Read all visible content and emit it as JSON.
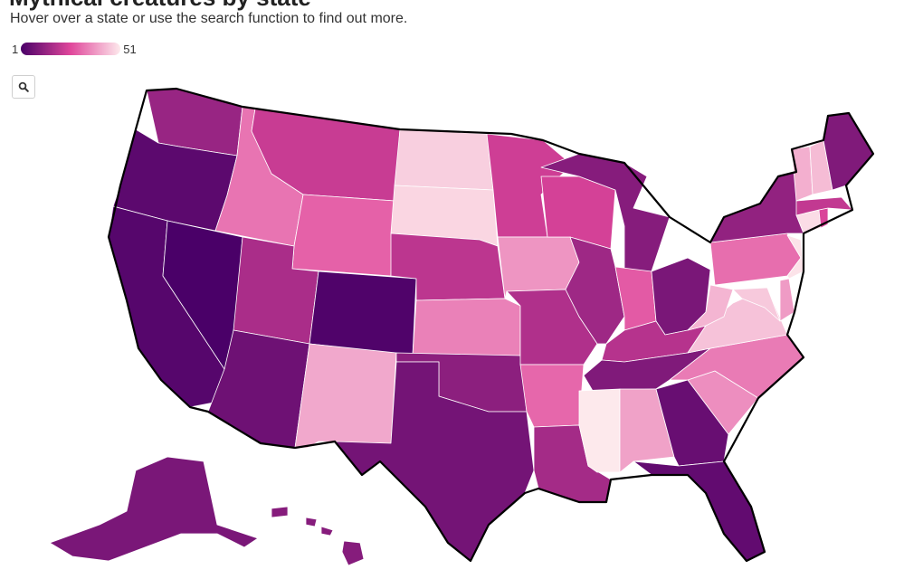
{
  "header": {
    "title": "Mythical creatures by state",
    "subtitle": "Hover over a state or use the search function to find out more."
  },
  "legend": {
    "min_label": "1",
    "max_label": "51",
    "color_low": "#4a0068",
    "color_mid": "#e0479b",
    "color_high": "#fde9ec"
  },
  "search": {
    "icon": "search-icon"
  },
  "map": {
    "states": [
      {
        "abbr": "WA",
        "rank": 14
      },
      {
        "abbr": "OR",
        "rank": 4
      },
      {
        "abbr": "CA",
        "rank": 3
      },
      {
        "abbr": "NV",
        "rank": 1
      },
      {
        "abbr": "ID",
        "rank": 33
      },
      {
        "abbr": "MT",
        "rank": 22
      },
      {
        "abbr": "WY",
        "rank": 30
      },
      {
        "abbr": "UT",
        "rank": 17
      },
      {
        "abbr": "AZ",
        "rank": 7
      },
      {
        "abbr": "CO",
        "rank": 2
      },
      {
        "abbr": "NM",
        "rank": 41
      },
      {
        "abbr": "ND",
        "rank": 47
      },
      {
        "abbr": "SD",
        "rank": 48
      },
      {
        "abbr": "NE",
        "rank": 20
      },
      {
        "abbr": "KS",
        "rank": 35
      },
      {
        "abbr": "OK",
        "rank": 12
      },
      {
        "abbr": "TX",
        "rank": 8
      },
      {
        "abbr": "MN",
        "rank": 23
      },
      {
        "abbr": "IA",
        "rank": 38
      },
      {
        "abbr": "MO",
        "rank": 18
      },
      {
        "abbr": "AR",
        "rank": 31
      },
      {
        "abbr": "LA",
        "rank": 16
      },
      {
        "abbr": "WI",
        "rank": 24
      },
      {
        "abbr": "IL",
        "rank": 15
      },
      {
        "abbr": "MI",
        "rank": 11
      },
      {
        "abbr": "IN",
        "rank": 29
      },
      {
        "abbr": "OH",
        "rank": 9
      },
      {
        "abbr": "KY",
        "rank": 19
      },
      {
        "abbr": "TN",
        "rank": 10
      },
      {
        "abbr": "MS",
        "rank": 51
      },
      {
        "abbr": "AL",
        "rank": 40
      },
      {
        "abbr": "GA",
        "rank": 6
      },
      {
        "abbr": "FL",
        "rank": 5
      },
      {
        "abbr": "SC",
        "rank": 37
      },
      {
        "abbr": "NC",
        "rank": 34
      },
      {
        "abbr": "VA",
        "rank": 45
      },
      {
        "abbr": "WV",
        "rank": 43
      },
      {
        "abbr": "PA",
        "rank": 32
      },
      {
        "abbr": "NY",
        "rank": 13
      },
      {
        "abbr": "VT",
        "rank": 42
      },
      {
        "abbr": "NH",
        "rank": 44
      },
      {
        "abbr": "ME",
        "rank": 10
      },
      {
        "abbr": "MA",
        "rank": 21
      },
      {
        "abbr": "RI",
        "rank": 25
      },
      {
        "abbr": "CT",
        "rank": 49
      },
      {
        "abbr": "NJ",
        "rank": 50
      },
      {
        "abbr": "DE",
        "rank": 39
      },
      {
        "abbr": "MD",
        "rank": 46
      },
      {
        "abbr": "AK",
        "rank": 9
      },
      {
        "abbr": "HI",
        "rank": 11
      }
    ]
  }
}
